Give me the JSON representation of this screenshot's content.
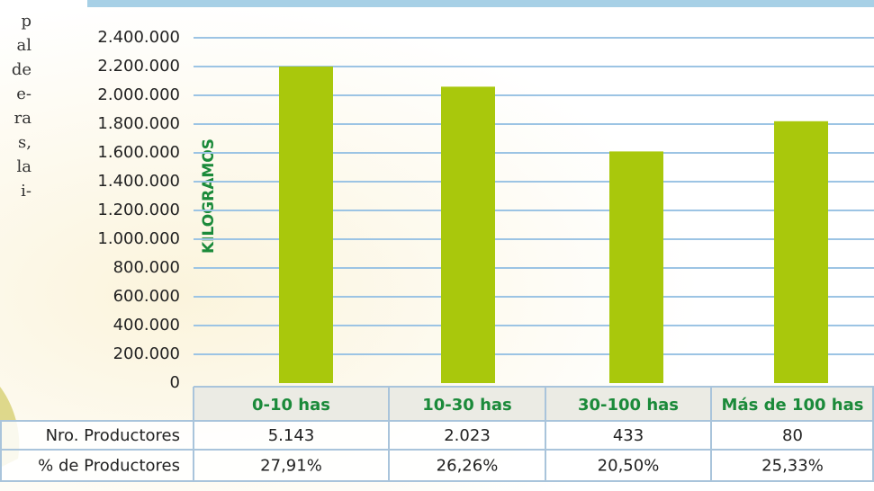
{
  "side_text": [
    "p",
    "al",
    "de",
    "e-",
    "ra",
    "s,",
    "la",
    "i-"
  ],
  "chart_data": {
    "type": "bar",
    "ylabel": "KILOGRAMOS",
    "categories": [
      "0-10 has",
      "10-30 has",
      "30-100 has",
      "Más de 100 has"
    ],
    "values": [
      2200000,
      2060000,
      1610000,
      1820000
    ],
    "color": "#a9c80c",
    "ylim": [
      0,
      2400000
    ],
    "yticks": [
      0,
      {
        "value": 200000,
        "label": "200.000"
      },
      {
        "value": 400000,
        "label": "400.000"
      },
      {
        "value": 600000,
        "label": "600.000"
      },
      {
        "value": 800000,
        "label": "800.000"
      },
      {
        "value": 1000000,
        "label": "1.000.000"
      },
      {
        "value": 1200000,
        "label": "1.200.000"
      },
      {
        "value": 1400000,
        "label": "1.400.000"
      },
      {
        "value": 1600000,
        "label": "1.600.000"
      },
      {
        "value": 1800000,
        "label": "1.800.000"
      },
      {
        "value": 2000000,
        "label": "2.000.000"
      },
      {
        "value": 2200000,
        "label": "2.200.000"
      },
      {
        "value": 2400000,
        "label": "2.400.000"
      }
    ],
    "grid": true
  },
  "table": {
    "rows": [
      [
        "Nro. Productores",
        "5.143",
        "2.023",
        "433",
        "80"
      ],
      [
        "% de Productores",
        "27,91%",
        "26,26%",
        "20,50%",
        "25,33%"
      ]
    ]
  }
}
